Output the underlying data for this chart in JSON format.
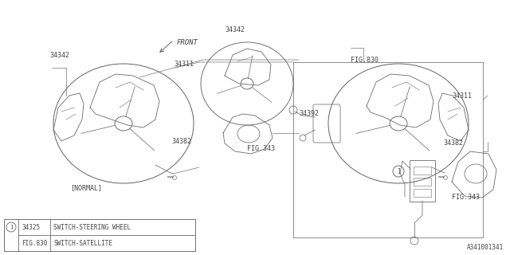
{
  "background_color": "#ffffff",
  "line_color": "#666666",
  "text_color": "#444444",
  "diagram_number": "A341001341",
  "figsize": [
    6.4,
    3.2
  ],
  "dpi": 100,
  "legend_rows": [
    {
      "circle": "1",
      "part": "34325",
      "desc": "SWITCH-STEERING WHEEL"
    },
    {
      "circle": "",
      "part": "FIG.830",
      "desc": "SWITCH-SATELLITE"
    }
  ]
}
